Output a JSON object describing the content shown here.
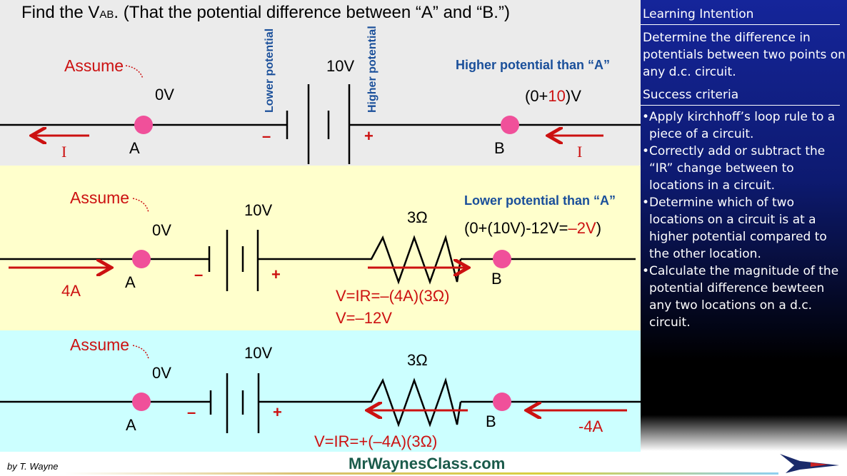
{
  "title": {
    "prefix": "Find the V",
    "sub": "AB",
    "suffix": ". (That the potential difference between “A” and “B.”)"
  },
  "row1": {
    "assume": "Assume",
    "a_voltage": "0V",
    "battery": "10V",
    "lower_label": "Lower potential",
    "higher_label": "Higher potential",
    "b_note": "Higher potential than “A”",
    "b_value_pre": "(0+",
    "b_value_red": "10",
    "b_value_post": ")V",
    "minus": "–",
    "plus": "+",
    "a": "A",
    "b": "B",
    "current_left": "I",
    "current_right": "I"
  },
  "row2": {
    "assume": "Assume",
    "a_voltage": "0V",
    "battery": "10V",
    "resistor": "3Ω",
    "b_note": "Lower potential than “A”",
    "b_value_pre": "(0+(10V)-12V=",
    "b_value_red": "–2V",
    "b_value_post": ")",
    "minus": "–",
    "plus": "+",
    "a": "A",
    "b": "B",
    "current": "4A",
    "eq1": "V=IR=–(4A)(3Ω)",
    "eq2": "V=–12V"
  },
  "row3": {
    "assume": "Assume",
    "a_voltage": "0V",
    "battery": "10V",
    "resistor": "3Ω",
    "minus": "–",
    "plus": "+",
    "a": "A",
    "b": "B",
    "current": "-4A",
    "eq1": "V=IR=+(–4A)(3Ω)"
  },
  "sidebar": {
    "heading1": "Learning Intention",
    "intention": "Determine the difference in potentials between two points on any d.c. circuit.",
    "heading2": "Success criteria",
    "criteria": [
      "Apply kirchhoff’s loop rule to a piece of a circuit.",
      "Correctly add or subtract the “IR” change between to locations in a circuit.",
      "Determine which of two locations on a circuit is at a higher potential compared to the other location.",
      "Calculate the magnitude of the potential difference bewteen any two locations on a d.c. circuit."
    ]
  },
  "footer": {
    "author": "by T. Wayne",
    "site": "MrWaynesClass.com"
  },
  "colors": {
    "red": "#cc1111",
    "blue": "#1a4f9a",
    "dot": "#f0509a"
  }
}
